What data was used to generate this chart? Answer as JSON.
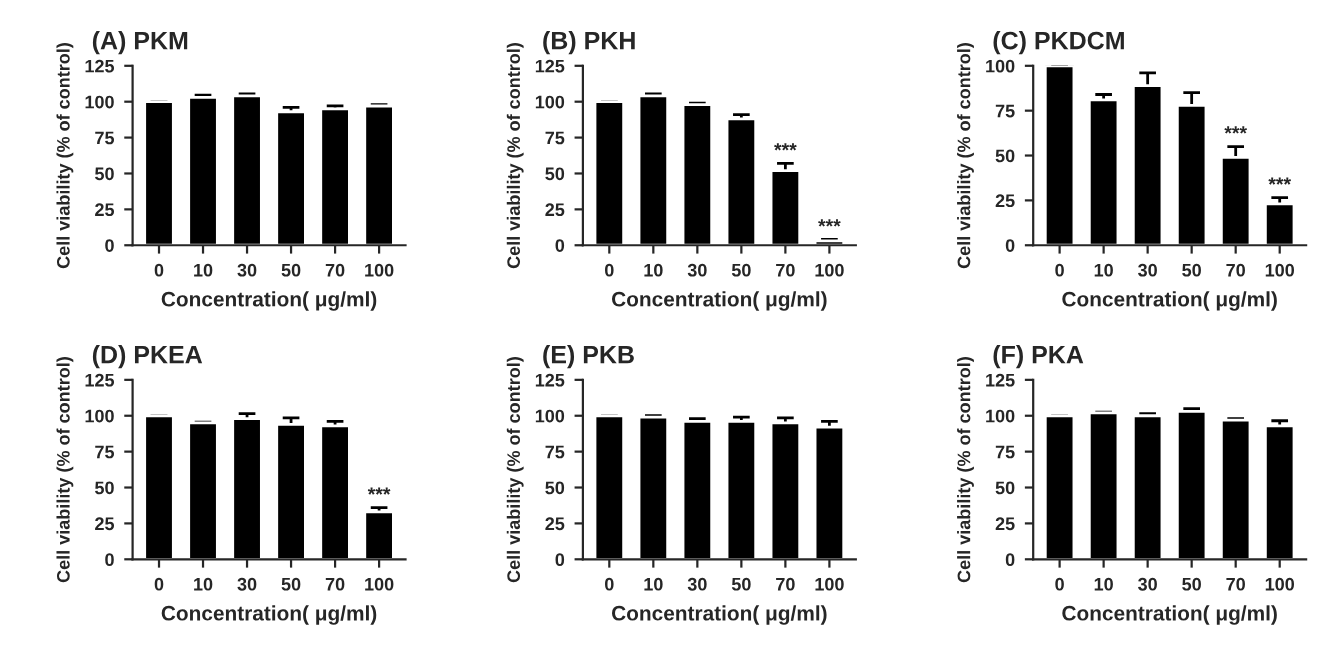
{
  "chart_data": [
    {
      "type": "bar",
      "title": "(A) PKM",
      "xlabel": "Concentration( μg/ml)",
      "ylabel": "Cell viability (% of control)",
      "categories": [
        "0",
        "10",
        "30",
        "50",
        "70",
        "100"
      ],
      "values": [
        100,
        103,
        104,
        93,
        95,
        97
      ],
      "errors": [
        0,
        1.5,
        1.5,
        3,
        2,
        1
      ],
      "color": "#000000",
      "ylim": [
        0,
        125
      ],
      "yticks": [
        0,
        25,
        50,
        75,
        100,
        125
      ],
      "grid": false,
      "legend": false
    },
    {
      "type": "bar",
      "title": "(B) PKH",
      "xlabel": "Concentration( μg/ml)",
      "ylabel": "Cell viability (% of control)",
      "categories": [
        "0",
        "10",
        "30",
        "50",
        "70",
        "100"
      ],
      "values": [
        100,
        104,
        98,
        88,
        52,
        3
      ],
      "errors": [
        0,
        1.5,
        1,
        3,
        5,
        1
      ],
      "color": "#000000",
      "ylim": [
        0,
        125
      ],
      "yticks": [
        0,
        25,
        50,
        75,
        100,
        125
      ],
      "grid": false,
      "legend": false,
      "annotations": [
        {
          "text": "***",
          "x": "70",
          "y": 57
        },
        {
          "text": "***",
          "x": "100",
          "y": 4
        }
      ]
    },
    {
      "type": "bar",
      "title": "(C) PKDCM",
      "xlabel": "Concentration( μg/ml)",
      "ylabel": "Cell viability (% of control)",
      "categories": [
        "0",
        "10",
        "30",
        "50",
        "70",
        "100"
      ],
      "values": [
        100,
        81,
        89,
        78,
        49,
        23
      ],
      "errors": [
        0,
        3,
        7,
        7,
        6,
        3.5
      ],
      "color": "#000000",
      "ylim": [
        0,
        100
      ],
      "yticks": [
        0,
        25,
        50,
        75,
        100
      ],
      "grid": false,
      "legend": false,
      "annotations": [
        {
          "text": "***",
          "x": "70",
          "y": 55
        },
        {
          "text": "***",
          "x": "100",
          "y": 26.5
        }
      ]
    },
    {
      "type": "bar",
      "title": "(D) PKEA",
      "xlabel": "Concentration( μg/ml)",
      "ylabel": "Cell viability (% of control)",
      "categories": [
        "0",
        "10",
        "30",
        "50",
        "70",
        "100"
      ],
      "values": [
        100,
        95,
        98,
        94,
        93,
        33
      ],
      "errors": [
        0,
        0.5,
        3.5,
        4.5,
        3,
        3
      ],
      "color": "#000000",
      "ylim": [
        0,
        125
      ],
      "yticks": [
        0,
        25,
        50,
        75,
        100,
        125
      ],
      "grid": false,
      "legend": false,
      "annotations": [
        {
          "text": "***",
          "x": "100",
          "y": 36
        }
      ]
    },
    {
      "type": "bar",
      "title": "(E) PKB",
      "xlabel": "Concentration( μg/ml)",
      "ylabel": "Cell viability (% of control)",
      "categories": [
        "0",
        "10",
        "30",
        "50",
        "70",
        "100"
      ],
      "values": [
        100,
        99,
        96,
        96,
        95,
        92
      ],
      "errors": [
        0,
        1,
        2,
        3,
        3.5,
        4
      ],
      "color": "#000000",
      "ylim": [
        0,
        125
      ],
      "yticks": [
        0,
        25,
        50,
        75,
        100,
        125
      ],
      "grid": false,
      "legend": false
    },
    {
      "type": "bar",
      "title": "(F) PKA",
      "xlabel": "Concentration( μg/ml)",
      "ylabel": "Cell viability (% of control)",
      "categories": [
        "0",
        "10",
        "30",
        "50",
        "70",
        "100"
      ],
      "values": [
        100,
        102,
        100,
        103,
        97,
        93
      ],
      "errors": [
        0,
        0.5,
        1.5,
        2,
        1,
        3.5
      ],
      "color": "#000000",
      "ylim": [
        0,
        125
      ],
      "yticks": [
        0,
        25,
        50,
        75,
        100,
        125
      ],
      "grid": false,
      "legend": false
    }
  ]
}
